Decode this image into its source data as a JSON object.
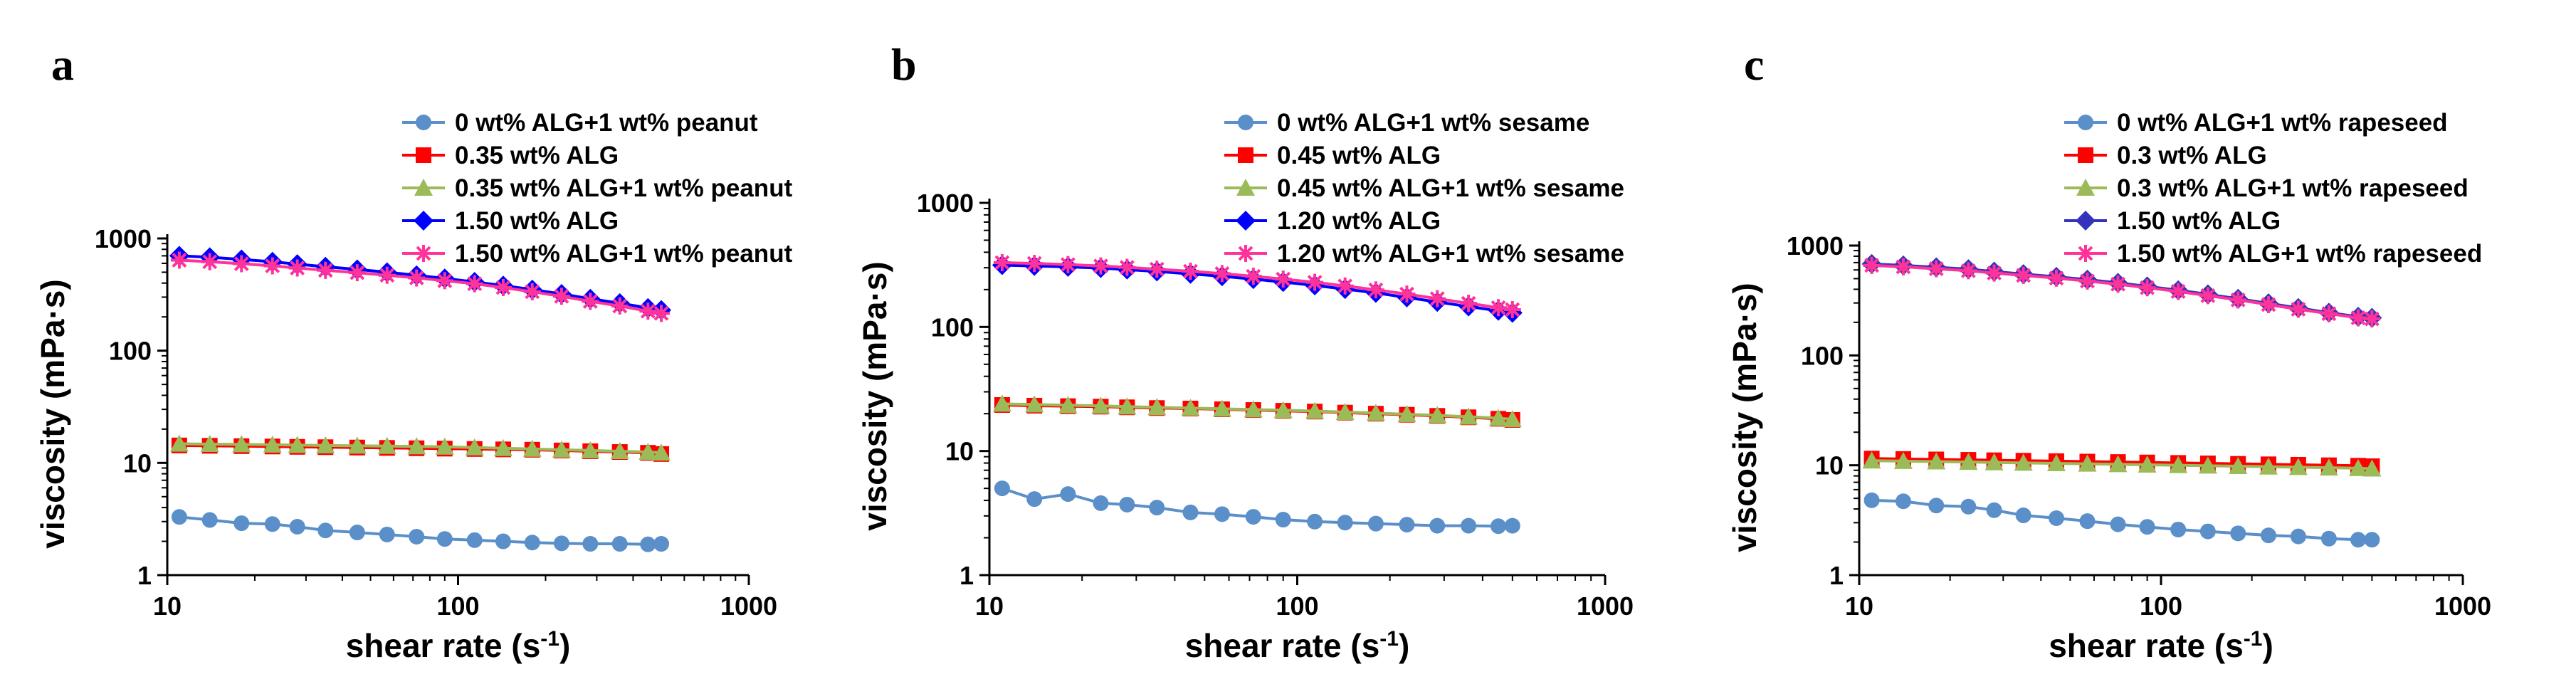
{
  "chart_data": [
    {
      "type": "line",
      "panel": "a",
      "xlabel": "shear rate (s",
      "xlabel_sup": "-1",
      "xlabel_end": ")",
      "ylabel": "viscosity (mPa·s)",
      "xscale": "log",
      "yscale": "log",
      "xlim": [
        10,
        1000
      ],
      "ylim": [
        1,
        1000
      ],
      "x_ticks": [
        "10",
        "100",
        "1000"
      ],
      "y_ticks": [
        "1",
        "10",
        "100",
        "1000"
      ],
      "legend_position": "top-right",
      "x": [
        11,
        14,
        18,
        23,
        28,
        35,
        45,
        57,
        72,
        90,
        114,
        143,
        180,
        227,
        285,
        360,
        450,
        500
      ],
      "series": [
        {
          "name": "0 wt% ALG+1 wt% peanut",
          "color": "#5B8FC9",
          "marker": "circle",
          "values": [
            3.3,
            3.1,
            2.9,
            2.85,
            2.7,
            2.5,
            2.4,
            2.3,
            2.2,
            2.1,
            2.05,
            2.0,
            1.95,
            1.92,
            1.9,
            1.9,
            1.88,
            1.9
          ]
        },
        {
          "name": "0.35 wt% ALG",
          "color": "#FF0000",
          "marker": "square",
          "values": [
            14.3,
            14.2,
            14.1,
            14.0,
            13.9,
            13.8,
            13.7,
            13.6,
            13.5,
            13.4,
            13.3,
            13.2,
            13.1,
            12.9,
            12.7,
            12.5,
            12.3,
            12.0
          ]
        },
        {
          "name": "0.35 wt% ALG+1 wt% peanut",
          "color": "#9BBB59",
          "marker": "triangle",
          "values": [
            14.8,
            14.7,
            14.6,
            14.5,
            14.4,
            14.3,
            14.2,
            14.1,
            14.0,
            13.9,
            13.7,
            13.5,
            13.3,
            13.1,
            12.9,
            12.7,
            12.5,
            12.3
          ]
        },
        {
          "name": "1.50 wt% ALG",
          "color": "#0000FF",
          "marker": "diamond",
          "values": [
            700,
            680,
            650,
            620,
            590,
            560,
            530,
            500,
            470,
            440,
            410,
            380,
            350,
            320,
            290,
            265,
            240,
            230
          ]
        },
        {
          "name": "1.50 wt% ALG+1 wt% peanut",
          "color": "#FF3399",
          "marker": "star",
          "values": [
            640,
            620,
            595,
            570,
            545,
            520,
            495,
            470,
            445,
            420,
            395,
            365,
            335,
            305,
            275,
            250,
            225,
            215
          ]
        }
      ]
    },
    {
      "type": "line",
      "panel": "b",
      "xlabel": "shear rate (s",
      "xlabel_sup": "-1",
      "xlabel_end": ")",
      "ylabel": "viscosity (mPa·s)",
      "xscale": "log",
      "yscale": "log",
      "xlim": [
        10,
        1000
      ],
      "ylim": [
        1,
        1000
      ],
      "x_ticks": [
        "10",
        "100",
        "1000"
      ],
      "y_ticks": [
        "1",
        "10",
        "100",
        "1000"
      ],
      "legend_position": "top-right",
      "x": [
        11,
        14,
        18,
        23,
        28,
        35,
        45,
        57,
        72,
        90,
        114,
        143,
        180,
        227,
        285,
        360,
        450,
        500
      ],
      "series": [
        {
          "name": "0 wt% ALG+1 wt% sesame",
          "color": "#5B8FC9",
          "marker": "circle",
          "values": [
            5.0,
            4.1,
            4.5,
            3.8,
            3.7,
            3.5,
            3.2,
            3.1,
            2.95,
            2.8,
            2.7,
            2.65,
            2.6,
            2.55,
            2.5,
            2.5,
            2.48,
            2.5
          ]
        },
        {
          "name": "0.45 wt% ALG",
          "color": "#FF0000",
          "marker": "square",
          "values": [
            23.5,
            23.2,
            23.0,
            22.8,
            22.5,
            22.2,
            22.0,
            21.7,
            21.4,
            21.1,
            20.8,
            20.4,
            20.0,
            19.6,
            19.2,
            18.7,
            18.2,
            17.8
          ]
        },
        {
          "name": "0.45 wt% ALG+1 wt% sesame",
          "color": "#9BBB59",
          "marker": "triangle",
          "values": [
            24.0,
            23.7,
            23.4,
            23.1,
            22.8,
            22.5,
            22.2,
            21.9,
            21.6,
            21.3,
            21.0,
            20.6,
            20.2,
            19.8,
            19.4,
            18.9,
            18.4,
            18.0
          ]
        },
        {
          "name": "1.20 wt% ALG",
          "color": "#0000FF",
          "marker": "diamond",
          "values": [
            315,
            310,
            305,
            298,
            290,
            280,
            268,
            256,
            243,
            230,
            216,
            202,
            188,
            173,
            159,
            146,
            135,
            130
          ]
        },
        {
          "name": "1.20 wt% ALG+1 wt% sesame",
          "color": "#FF3399",
          "marker": "star",
          "values": [
            330,
            325,
            318,
            310,
            302,
            292,
            281,
            269,
            256,
            243,
            229,
            214,
            199,
            184,
            169,
            155,
            143,
            138
          ]
        }
      ]
    },
    {
      "type": "line",
      "panel": "c",
      "xlabel": "shear rate (s",
      "xlabel_sup": "-1",
      "xlabel_end": ")",
      "ylabel": "viscosity (mPa·s)",
      "xscale": "log",
      "yscale": "log",
      "xlim": [
        10,
        1000
      ],
      "ylim": [
        1,
        1000
      ],
      "x_ticks": [
        "10",
        "100",
        "1000"
      ],
      "y_ticks": [
        "1",
        "10",
        "100",
        "1000"
      ],
      "legend_position": "top-right",
      "x": [
        11,
        14,
        18,
        23,
        28,
        35,
        45,
        57,
        72,
        90,
        114,
        143,
        180,
        227,
        285,
        360,
        450,
        500
      ],
      "series": [
        {
          "name": "0 wt% ALG+1 wt% rapeseed",
          "color": "#5B8FC9",
          "marker": "circle",
          "values": [
            4.8,
            4.7,
            4.3,
            4.2,
            3.9,
            3.5,
            3.3,
            3.1,
            2.9,
            2.75,
            2.6,
            2.5,
            2.4,
            2.3,
            2.25,
            2.15,
            2.1,
            2.1
          ]
        },
        {
          "name": "0.3 wt% ALG",
          "color": "#FF0000",
          "marker": "square",
          "values": [
            11.5,
            11.4,
            11.3,
            11.2,
            11.1,
            11.0,
            10.9,
            10.8,
            10.7,
            10.6,
            10.5,
            10.4,
            10.3,
            10.2,
            10.1,
            10.0,
            9.9,
            9.8
          ]
        },
        {
          "name": "0.3 wt% ALG+1 wt% rapeseed",
          "color": "#9BBB59",
          "marker": "triangle",
          "values": [
            11.0,
            10.9,
            10.8,
            10.7,
            10.6,
            10.5,
            10.4,
            10.3,
            10.2,
            10.1,
            10.0,
            9.9,
            9.8,
            9.7,
            9.6,
            9.5,
            9.4,
            9.3
          ]
        },
        {
          "name": "1.50 wt% ALG",
          "color": "#3333BB",
          "marker": "diamond",
          "values": [
            680,
            660,
            635,
            610,
            580,
            550,
            520,
            490,
            458,
            425,
            392,
            360,
            328,
            298,
            270,
            245,
            225,
            220
          ]
        },
        {
          "name": "1.50 wt% ALG+1 wt% rapeseed",
          "color": "#FF3399",
          "marker": "star",
          "values": [
            660,
            640,
            615,
            590,
            562,
            535,
            505,
            475,
            445,
            413,
            382,
            350,
            320,
            290,
            263,
            240,
            220,
            215
          ]
        }
      ]
    }
  ]
}
